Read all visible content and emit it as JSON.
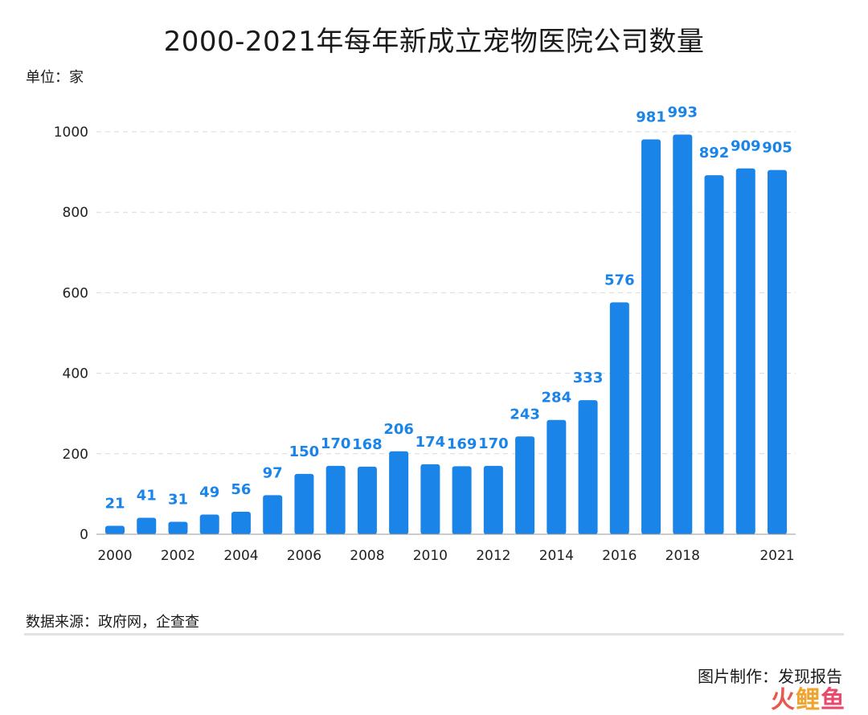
{
  "title": "2000-2021年每年新成立宠物医院公司数量",
  "unit_label": "单位：家",
  "source_label": "数据来源：政府网，企查查",
  "credit_label": "图片制作：发现报告",
  "watermark": {
    "part1": "火",
    "part2": "鲤",
    "part3": "鱼"
  },
  "colors": {
    "bar": "#1a84e8",
    "data_label": "#1a84e8",
    "grid": "#d9d9d9"
  },
  "chart_data": {
    "type": "bar",
    "title": "2000-2021年每年新成立宠物医院公司数量",
    "xlabel": "",
    "ylabel": "单位：家",
    "categories": [
      "2000",
      "2001",
      "2002",
      "2003",
      "2004",
      "2005",
      "2006",
      "2007",
      "2008",
      "2009",
      "2010",
      "2011",
      "2012",
      "2013",
      "2014",
      "2015",
      "2016",
      "2017",
      "2018",
      "2019",
      "2020",
      "2021"
    ],
    "values": [
      21,
      41,
      31,
      49,
      56,
      97,
      150,
      170,
      168,
      206,
      174,
      169,
      170,
      243,
      284,
      333,
      576,
      981,
      993,
      892,
      909,
      905
    ],
    "x_tick_labels": [
      "2000",
      "",
      "2002",
      "",
      "2004",
      "",
      "2006",
      "",
      "2008",
      "",
      "2010",
      "",
      "2012",
      "",
      "2014",
      "",
      "2016",
      "",
      "2018",
      "",
      "",
      "2021"
    ],
    "y_ticks": [
      0,
      200,
      400,
      600,
      800,
      1000
    ],
    "ylim": [
      0,
      1000
    ],
    "grid": true,
    "legend": "none"
  }
}
